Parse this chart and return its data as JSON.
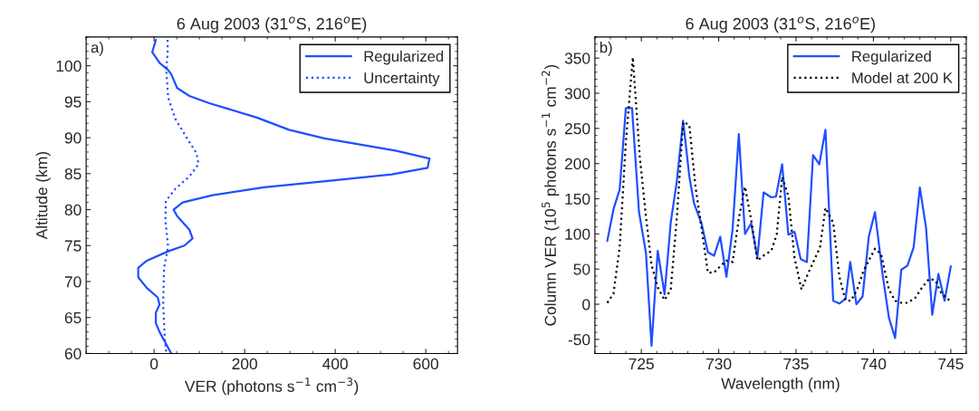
{
  "chart_data": [
    {
      "type": "line",
      "title": "6 Aug 2003 (31$^{o}$S, 216$^{o}$E)",
      "xlabel": "VER (photons s$^{−1}$ cm$^{−3}$)",
      "ylabel": "Altitude (km)",
      "annotations": [
        "a)"
      ],
      "xlim": [
        -150,
        670
      ],
      "xticks": [
        0,
        200,
        400,
        600
      ],
      "ylim": [
        60,
        104
      ],
      "yticks": [
        60,
        65,
        70,
        75,
        80,
        85,
        90,
        95,
        100
      ],
      "grid": false,
      "legend": "top right",
      "series": [
        {
          "name": "Regularized",
          "color": "#1f4fff",
          "line_style": "solid",
          "values": [
            103.6,
            101.9,
            100.4,
            99.4,
            98.8,
            96.9,
            95.8,
            94.8,
            92.8,
            91.1,
            89.9,
            88.2,
            87.1,
            85.8,
            84.9,
            83.9,
            83.1,
            82.0,
            81.0,
            80.0,
            79.1,
            77.2,
            76.0,
            75.0,
            74.2,
            72.9,
            71.9,
            70.6,
            69.1,
            67.8,
            66.8,
            65.7,
            64.2,
            63.0,
            60
          ],
          "x": [
            4,
            -4,
            12,
            31,
            38,
            51,
            78,
            122,
            227,
            298,
            376,
            533,
            608,
            604,
            525,
            369,
            243,
            129,
            63,
            43,
            51,
            78,
            85,
            67,
            31,
            -16,
            -35,
            -35,
            -16,
            8,
            12,
            4,
            4,
            12,
            38
          ]
        },
        {
          "name": "Uncertainty",
          "color": "#1f4fff",
          "line_style": "dotted",
          "values": [
            103.6,
            101.9,
            99.4,
            95.6,
            92.6,
            90.1,
            87.8,
            86.3,
            84.6,
            82.9,
            81.2,
            78.6,
            74.8,
            71.9,
            66.8,
            61.7,
            60
          ],
          "x": [
            30,
            30,
            27,
            31,
            47,
            71,
            94,
            98,
            78,
            47,
            26,
            25,
            31,
            22,
            20,
            24,
            27
          ]
        }
      ]
    },
    {
      "type": "line",
      "title": "6 Aug 2003 (31$^{o}$S, 216$^{o}$E)",
      "xlabel": "Wavelength (nm)",
      "ylabel": "Column VER (10$^{5}$ photons s$^{−1}$ cm$^{−2}$)",
      "annotations": [
        "b)"
      ],
      "xlim": [
        722,
        746
      ],
      "xticks": [
        725,
        730,
        735,
        740,
        745
      ],
      "ylim": [
        -70,
        380
      ],
      "yticks": [
        -50,
        0,
        50,
        100,
        150,
        200,
        250,
        300,
        350
      ],
      "grid": false,
      "legend": "top right",
      "series": [
        {
          "name": "Regularized",
          "color": "#1f4fff",
          "line_style": "solid",
          "x": [
            722.8,
            723.2,
            723.6,
            724.0,
            724.4,
            724.85,
            725.3,
            725.66,
            726.06,
            726.5,
            726.9,
            727.3,
            727.7,
            728.1,
            728.4,
            728.9,
            729.3,
            729.7,
            730.1,
            730.5,
            730.9,
            731.3,
            731.7,
            732.1,
            732.5,
            732.9,
            733.4,
            733.7,
            734.1,
            734.5,
            734.9,
            735.3,
            735.7,
            736.1,
            736.5,
            736.9,
            737.4,
            737.8,
            738.2,
            738.5,
            738.9,
            739.3,
            739.7,
            740.1,
            740.6,
            741.0,
            741.4,
            741.8,
            742.2,
            742.6,
            743.0,
            743.4,
            743.8,
            744.2,
            744.6,
            745.0
          ],
          "values": [
            90,
            135,
            163,
            279,
            279,
            131,
            73,
            -59,
            76,
            14,
            116,
            176,
            261,
            182,
            144,
            114,
            74,
            69,
            96,
            39,
            107,
            242,
            100,
            115,
            66,
            159,
            152,
            153,
            199,
            99,
            103,
            64,
            60,
            212,
            199,
            248,
            5,
            1,
            8,
            60,
            0,
            11,
            96,
            131,
            41,
            -19,
            -48,
            49,
            55,
            81,
            166,
            109,
            -15,
            43,
            5,
            54
          ]
        },
        {
          "name": "Model at 200 K",
          "color": "#000000",
          "line_style": "dotted",
          "x": [
            722.8,
            723.2,
            723.6,
            724.0,
            724.45,
            724.9,
            725.3,
            725.66,
            726.06,
            726.5,
            726.9,
            727.3,
            727.7,
            728.1,
            728.5,
            728.9,
            729.3,
            729.7,
            730.1,
            730.5,
            730.9,
            731.3,
            731.7,
            732.1,
            732.5,
            733.0,
            733.4,
            733.75,
            734.1,
            734.5,
            734.9,
            735.35,
            735.8,
            736.55,
            736.9,
            737.4,
            737.8,
            738.2,
            738.55,
            738.95,
            739.35,
            739.7,
            740.1,
            740.5,
            741.0,
            741.4,
            741.8,
            742.2,
            742.7,
            743.15,
            743.6,
            744.0,
            744.4,
            745.0
          ],
          "values": [
            2,
            15,
            81,
            231,
            351,
            210,
            124,
            56,
            24,
            6,
            21,
            124,
            259,
            255,
            167,
            107,
            45,
            45,
            54,
            62,
            60,
            122,
            167,
            120,
            62,
            71,
            76,
            99,
            181,
            154,
            66,
            21,
            45,
            81,
            137,
            116,
            39,
            5,
            5,
            21,
            47,
            62,
            79,
            71,
            21,
            5,
            2,
            2,
            9,
            24,
            36,
            34,
            15,
            4
          ]
        }
      ]
    }
  ]
}
